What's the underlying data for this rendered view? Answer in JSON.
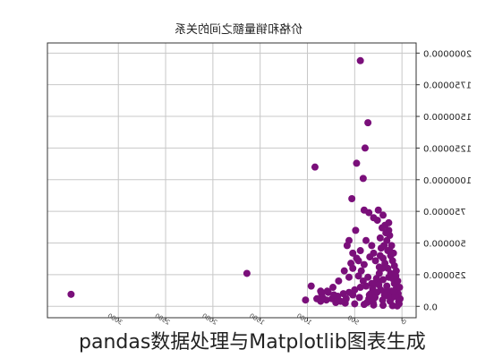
{
  "chart_data": {
    "type": "scatter",
    "title": "价格和销量额之间的关系",
    "xlabel": "",
    "ylabel": "",
    "mirrored": true,
    "xlim": [
      3750,
      -150
    ],
    "ylim": [
      -90000,
      2080000
    ],
    "x_ticks": [
      3000,
      2500,
      2000,
      1500,
      1000,
      500,
      0
    ],
    "y_ticks": [
      "0.0",
      "250000.0",
      "500000.0",
      "750000.0",
      "1000000.0",
      "1250000.0",
      "1500000.0",
      "1750000.0",
      "2000000.0"
    ],
    "y_tick_values": [
      0,
      250000,
      500000,
      750000,
      1000000,
      1250000,
      1500000,
      1750000,
      2000000
    ],
    "grid": true,
    "point_color": "#7a0f7a",
    "points": [
      [
        3500,
        95000
      ],
      [
        1640,
        260000
      ],
      [
        920,
        1100000
      ],
      [
        1020,
        50000
      ],
      [
        960,
        160000
      ],
      [
        860,
        120000
      ],
      [
        440,
        1940000
      ],
      [
        360,
        1450000
      ],
      [
        390,
        1250000
      ],
      [
        480,
        1130000
      ],
      [
        410,
        1010000
      ],
      [
        530,
        850000
      ],
      [
        350,
        740000
      ],
      [
        300,
        700000
      ],
      [
        580,
        480000
      ],
      [
        560,
        520000
      ],
      [
        490,
        600000
      ],
      [
        400,
        760000
      ],
      [
        250,
        760000
      ],
      [
        200,
        720000
      ],
      [
        180,
        640000
      ],
      [
        140,
        600000
      ],
      [
        130,
        560000
      ],
      [
        160,
        520000
      ],
      [
        220,
        460000
      ],
      [
        300,
        420000
      ],
      [
        340,
        390000
      ],
      [
        280,
        360000
      ],
      [
        200,
        380000
      ],
      [
        120,
        400000
      ],
      [
        100,
        360000
      ],
      [
        80,
        320000
      ],
      [
        60,
        280000
      ],
      [
        90,
        250000
      ],
      [
        140,
        230000
      ],
      [
        200,
        210000
      ],
      [
        260,
        200000
      ],
      [
        320,
        180000
      ],
      [
        380,
        160000
      ],
      [
        440,
        150000
      ],
      [
        500,
        130000
      ],
      [
        560,
        110000
      ],
      [
        620,
        100000
      ],
      [
        680,
        80000
      ],
      [
        740,
        60000
      ],
      [
        800,
        50000
      ],
      [
        860,
        40000
      ],
      [
        700,
        30000
      ],
      [
        600,
        25000
      ],
      [
        500,
        20000
      ],
      [
        400,
        15000
      ],
      [
        300,
        10000
      ],
      [
        200,
        8000
      ],
      [
        100,
        5000
      ],
      [
        50,
        3000
      ],
      [
        30,
        20000
      ],
      [
        20,
        60000
      ],
      [
        40,
        100000
      ],
      [
        60,
        140000
      ],
      [
        80,
        180000
      ],
      [
        100,
        220000
      ],
      [
        120,
        260000
      ],
      [
        150,
        300000
      ],
      [
        180,
        340000
      ],
      [
        210,
        300000
      ],
      [
        240,
        260000
      ],
      [
        270,
        220000
      ],
      [
        290,
        180000
      ],
      [
        310,
        140000
      ],
      [
        330,
        100000
      ],
      [
        350,
        60000
      ],
      [
        370,
        30000
      ],
      [
        450,
        70000
      ],
      [
        520,
        90000
      ],
      [
        590,
        60000
      ],
      [
        650,
        40000
      ],
      [
        720,
        90000
      ],
      [
        780,
        110000
      ],
      [
        840,
        70000
      ],
      [
        900,
        60000
      ],
      [
        460,
        240000
      ],
      [
        430,
        280000
      ],
      [
        520,
        300000
      ],
      [
        560,
        230000
      ],
      [
        410,
        200000
      ],
      [
        360,
        230000
      ],
      [
        240,
        310000
      ],
      [
        160,
        160000
      ],
      [
        110,
        120000
      ],
      [
        70,
        80000
      ],
      [
        35,
        40000
      ],
      [
        25,
        150000
      ],
      [
        45,
        200000
      ],
      [
        65,
        240000
      ],
      [
        85,
        120000
      ],
      [
        105,
        70000
      ],
      [
        125,
        40000
      ],
      [
        145,
        80000
      ],
      [
        165,
        120000
      ],
      [
        185,
        90000
      ],
      [
        205,
        50000
      ],
      [
        225,
        130000
      ],
      [
        245,
        170000
      ],
      [
        265,
        110000
      ],
      [
        285,
        70000
      ],
      [
        305,
        30000
      ],
      [
        325,
        50000
      ],
      [
        345,
        90000
      ],
      [
        150,
        440000
      ],
      [
        190,
        480000
      ],
      [
        230,
        540000
      ],
      [
        170,
        580000
      ],
      [
        210,
        620000
      ],
      [
        260,
        680000
      ],
      [
        110,
        480000
      ],
      [
        130,
        440000
      ],
      [
        90,
        420000
      ],
      [
        140,
        660000
      ],
      [
        230,
        400000
      ],
      [
        320,
        480000
      ],
      [
        380,
        520000
      ],
      [
        440,
        440000
      ],
      [
        480,
        380000
      ],
      [
        540,
        340000
      ],
      [
        610,
        280000
      ],
      [
        670,
        200000
      ],
      [
        730,
        150000
      ],
      [
        790,
        120000
      ],
      [
        850,
        100000
      ],
      [
        400,
        330000
      ],
      [
        460,
        360000
      ],
      [
        520,
        420000
      ]
    ]
  },
  "caption": "pandas数据处理与Matplotlib图表生成"
}
